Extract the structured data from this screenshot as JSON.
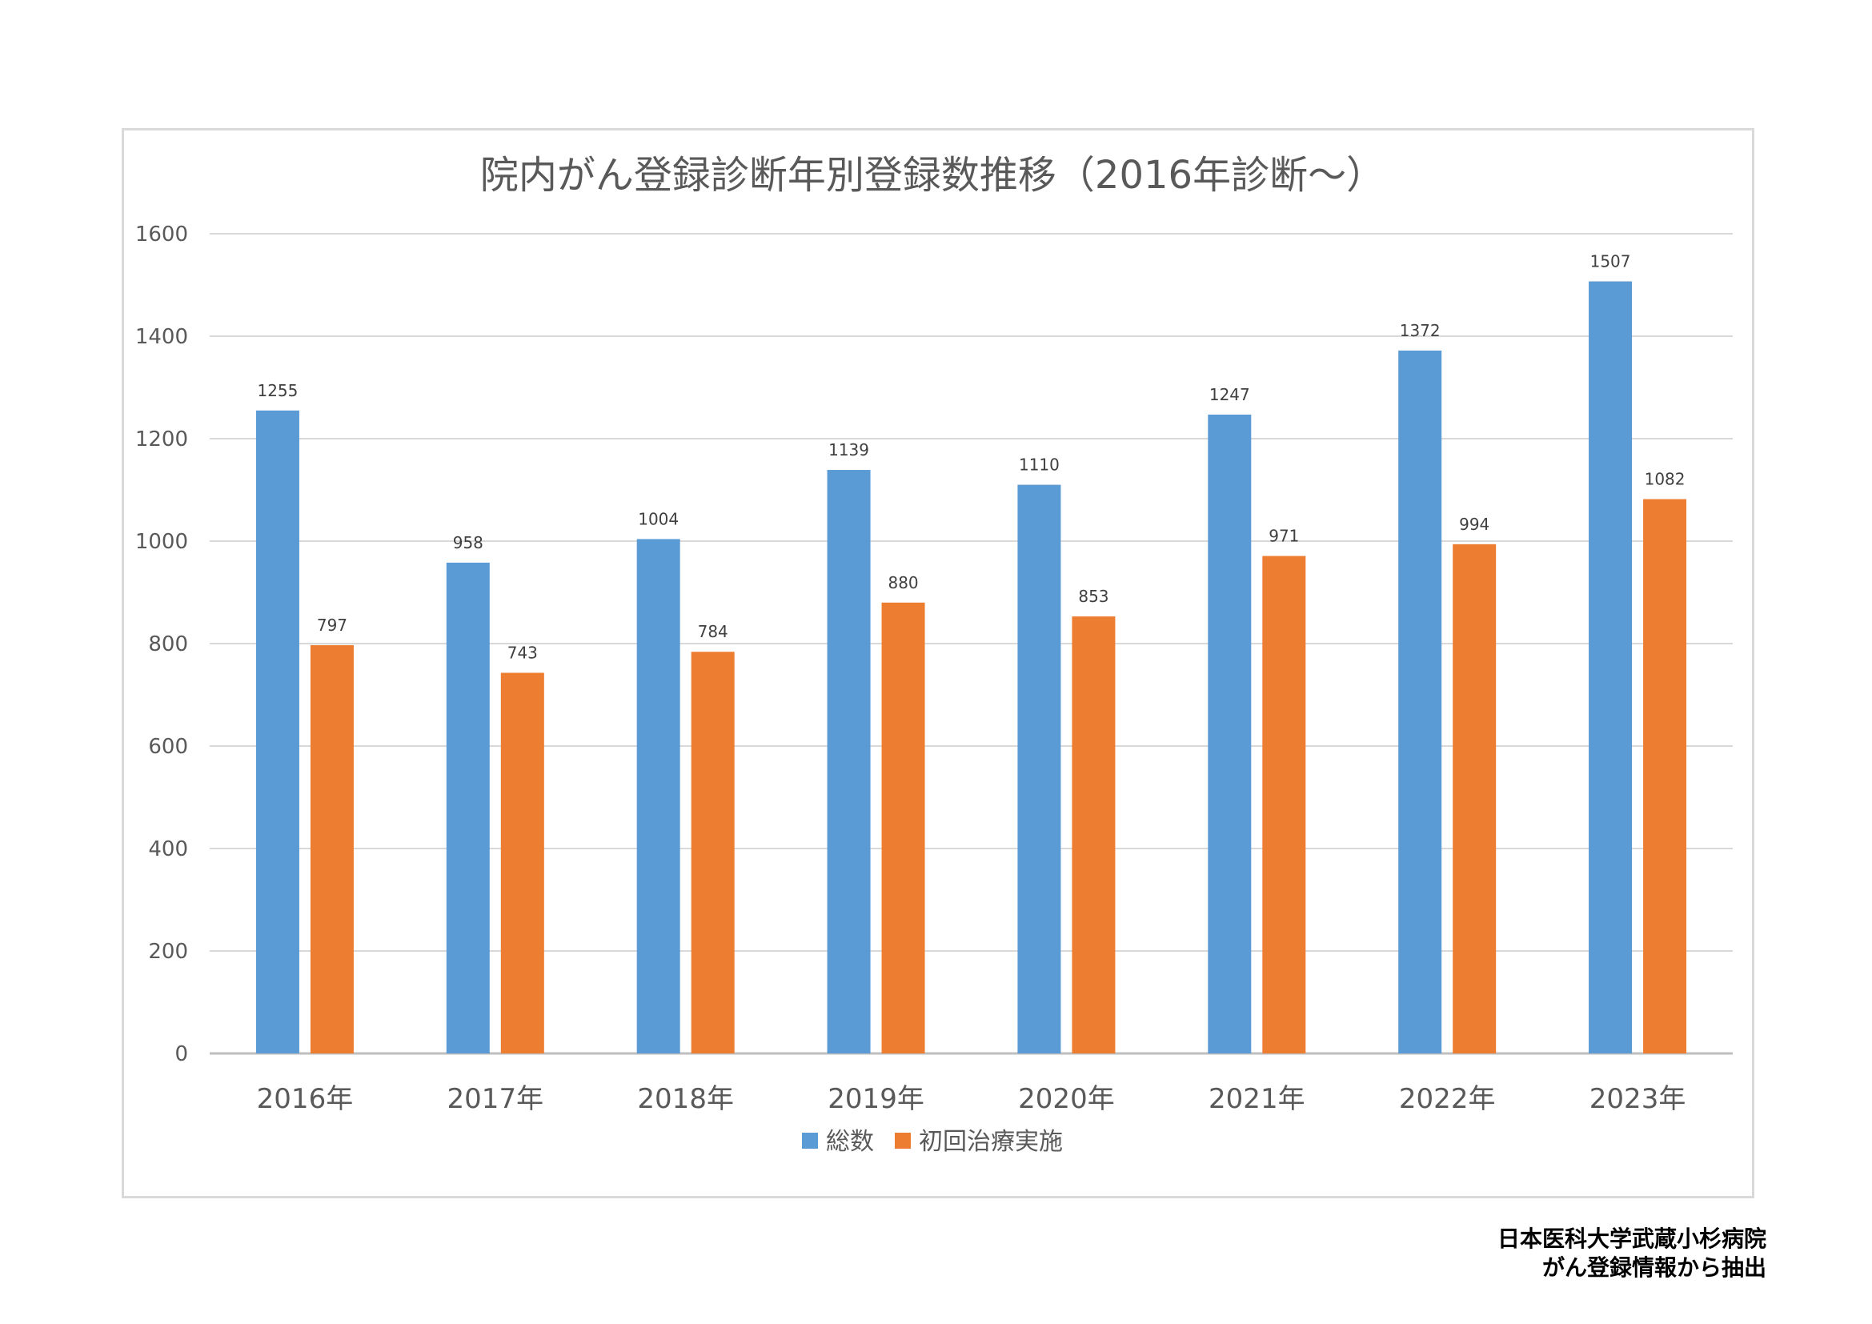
{
  "chart_data": {
    "type": "bar",
    "title": "院内がん登録診断年別登録数推移（2016年診断～）",
    "categories": [
      "2016年",
      "2017年",
      "2018年",
      "2019年",
      "2020年",
      "2021年",
      "2022年",
      "2023年"
    ],
    "series": [
      {
        "name": "総数",
        "color": "#5b9bd5",
        "values": [
          1255,
          958,
          1004,
          1139,
          1110,
          1247,
          1372,
          1507
        ]
      },
      {
        "name": "初回治療実施",
        "color": "#ed7d31",
        "values": [
          797,
          743,
          784,
          880,
          853,
          971,
          994,
          1082
        ]
      }
    ],
    "ylim": [
      0,
      1600
    ],
    "yticks": [
      0,
      200,
      400,
      600,
      800,
      1000,
      1200,
      1400,
      1600
    ],
    "grid": true,
    "legend_position": "bottom",
    "xlabel": "",
    "ylabel": ""
  },
  "source": {
    "line1": "日本医科大学武蔵小杉病院",
    "line2": "がん登録情報から抽出"
  }
}
